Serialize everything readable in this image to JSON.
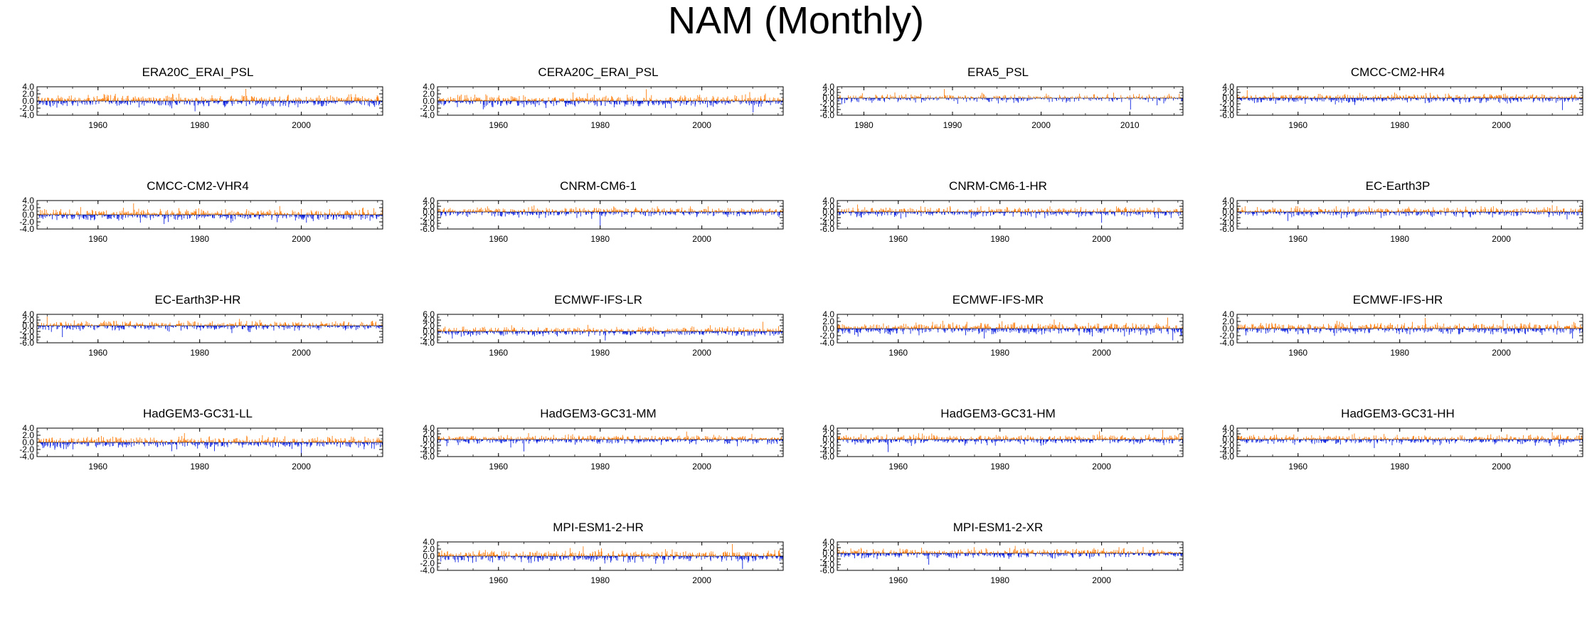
{
  "title": "NAM (Monthly)",
  "colors": {
    "positive": "#ff7f0e",
    "negative": "#0a1fe0",
    "frame": "#000000"
  },
  "chart_data": [
    {
      "type": "bar",
      "title": "ERA20C_ERAI_PSL",
      "xlim": [
        1948,
        2016
      ],
      "ylim": [
        -4,
        4
      ],
      "yticks": [
        -4,
        -2,
        0,
        2,
        4
      ],
      "ytick_labels": [
        "-4.0",
        "-2.0",
        "0.0",
        "2.0",
        "4.0"
      ],
      "xticks": [
        1960,
        1980,
        2000
      ],
      "xtick_labels": [
        "1960",
        "1980",
        "2000"
      ],
      "grid": false,
      "legend": "none",
      "series_summary": {
        "x_start": 1948,
        "x_end": 2016,
        "step": "monthly",
        "max_value": 3.4,
        "min_value": -2.9,
        "max_date": 1989.1,
        "min_date": 1979.1
      }
    },
    {
      "type": "bar",
      "title": "CERA20C_ERAI_PSL",
      "xlim": [
        1948,
        2016
      ],
      "ylim": [
        -4,
        4
      ],
      "yticks": [
        -4,
        -2,
        0,
        2,
        4
      ],
      "ytick_labels": [
        "-4.0",
        "-2.0",
        "0.0",
        "2.0",
        "4.0"
      ],
      "xticks": [
        1960,
        1980,
        2000
      ],
      "xtick_labels": [
        "1960",
        "1980",
        "2000"
      ],
      "grid": false,
      "legend": "none",
      "series_summary": {
        "x_start": 1948,
        "x_end": 2016,
        "step": "monthly",
        "max_value": 3.3,
        "min_value": -3.2,
        "max_date": 1989.1,
        "min_date": 2010.1
      }
    },
    {
      "type": "bar",
      "title": "ERA5_PSL",
      "xlim": [
        1977,
        2016
      ],
      "ylim": [
        -6,
        4
      ],
      "yticks": [
        -6,
        -4,
        -2,
        0,
        2,
        4
      ],
      "ytick_labels": [
        "-6.0",
        "-4.0",
        "-2.0",
        "0.0",
        "2.0",
        "4.0"
      ],
      "xticks": [
        1980,
        1990,
        2000,
        2010
      ],
      "xtick_labels": [
        "1980",
        "1990",
        "2000",
        "2010"
      ],
      "grid": false,
      "legend": "none",
      "series_summary": {
        "x_start": 1977,
        "x_end": 2016,
        "step": "monthly",
        "max_value": 3.2,
        "min_value": -4.0,
        "max_date": 1989.1,
        "min_date": 2010.1
      }
    },
    {
      "type": "bar",
      "title": "CMCC-CM2-HR4",
      "xlim": [
        1948,
        2016
      ],
      "ylim": [
        -6,
        4
      ],
      "yticks": [
        -6,
        -4,
        -2,
        0,
        2,
        4
      ],
      "ytick_labels": [
        "-6.0",
        "-4.0",
        "-2.0",
        "0.0",
        "2.0",
        "4.0"
      ],
      "xticks": [
        1960,
        1980,
        2000
      ],
      "xtick_labels": [
        "1960",
        "1980",
        "2000"
      ],
      "grid": false,
      "legend": "none",
      "series_summary": {
        "x_start": 1948,
        "x_end": 2016,
        "step": "monthly",
        "max_value": 2.8,
        "min_value": -4.2,
        "max_date": 1950,
        "min_date": 2012
      }
    },
    {
      "type": "bar",
      "title": "CMCC-CM2-VHR4",
      "xlim": [
        1948,
        2016
      ],
      "ylim": [
        -4,
        4
      ],
      "yticks": [
        -4,
        -2,
        0,
        2,
        4
      ],
      "ytick_labels": [
        "-4.0",
        "-2.0",
        "0.0",
        "2.0",
        "4.0"
      ],
      "xticks": [
        1960,
        1980,
        2000
      ],
      "xtick_labels": [
        "1960",
        "1980",
        "2000"
      ],
      "grid": false,
      "legend": "none",
      "series_summary": {
        "x_start": 1948,
        "x_end": 2016,
        "step": "monthly",
        "max_value": 3.2,
        "min_value": -2.6,
        "max_date": 1967,
        "min_date": 1973
      }
    },
    {
      "type": "bar",
      "title": "CNRM-CM6-1",
      "xlim": [
        1948,
        2016
      ],
      "ylim": [
        -6,
        4
      ],
      "yticks": [
        -6,
        -4,
        -2,
        0,
        2,
        4
      ],
      "ytick_labels": [
        "-6.0",
        "-4.0",
        "-2.0",
        "0.0",
        "2.0",
        "4.0"
      ],
      "xticks": [
        1960,
        1980,
        2000
      ],
      "xtick_labels": [
        "1960",
        "1980",
        "2000"
      ],
      "grid": false,
      "legend": "none",
      "series_summary": {
        "x_start": 1948,
        "x_end": 2016,
        "step": "monthly",
        "max_value": 2.3,
        "min_value": -5.2,
        "max_date": 1967,
        "min_date": 1980
      }
    },
    {
      "type": "bar",
      "title": "CNRM-CM6-1-HR",
      "xlim": [
        1948,
        2016
      ],
      "ylim": [
        -6,
        4
      ],
      "yticks": [
        -6,
        -4,
        -2,
        0,
        2,
        4
      ],
      "ytick_labels": [
        "-6.0",
        "-4.0",
        "-2.0",
        "0.0",
        "2.0",
        "4.0"
      ],
      "xticks": [
        1960,
        1980,
        2000
      ],
      "xtick_labels": [
        "1960",
        "1980",
        "2000"
      ],
      "grid": false,
      "legend": "none",
      "series_summary": {
        "x_start": 1948,
        "x_end": 2016,
        "step": "monthly",
        "max_value": 2.6,
        "min_value": -3.8,
        "max_date": 1952,
        "min_date": 2000
      }
    },
    {
      "type": "bar",
      "title": "EC-Earth3P",
      "xlim": [
        1948,
        2016
      ],
      "ylim": [
        -6,
        4
      ],
      "yticks": [
        -6,
        -4,
        -2,
        0,
        2,
        4
      ],
      "ytick_labels": [
        "-6.0",
        "-4.0",
        "-2.0",
        "0.0",
        "2.0",
        "4.0"
      ],
      "xticks": [
        1960,
        1980,
        2000
      ],
      "xtick_labels": [
        "1960",
        "1980",
        "2000"
      ],
      "grid": false,
      "legend": "none",
      "series_summary": {
        "x_start": 1948,
        "x_end": 2016,
        "step": "monthly",
        "max_value": 2.4,
        "min_value": -3.2,
        "max_date": 2010,
        "min_date": 1958
      }
    },
    {
      "type": "bar",
      "title": "EC-Earth3P-HR",
      "xlim": [
        1948,
        2016
      ],
      "ylim": [
        -6,
        4
      ],
      "yticks": [
        -6,
        -4,
        -2,
        0,
        2,
        4
      ],
      "ytick_labels": [
        "-6.0",
        "-4.0",
        "-2.0",
        "0.0",
        "2.0",
        "4.0"
      ],
      "xticks": [
        1960,
        1980,
        2000
      ],
      "xtick_labels": [
        "1960",
        "1980",
        "2000"
      ],
      "grid": false,
      "legend": "none",
      "series_summary": {
        "x_start": 1948,
        "x_end": 2016,
        "step": "monthly",
        "max_value": 3.2,
        "min_value": -4.0,
        "max_date": 1950,
        "min_date": 1953
      }
    },
    {
      "type": "bar",
      "title": "ECMWF-IFS-LR",
      "xlim": [
        1948,
        2016
      ],
      "ylim": [
        -4,
        6
      ],
      "yticks": [
        -4,
        -2,
        0,
        2,
        4,
        6
      ],
      "ytick_labels": [
        "-4.0",
        "-2.0",
        "0.0",
        "2.0",
        "4.0",
        "6.0"
      ],
      "xticks": [
        1960,
        1980,
        2000
      ],
      "xtick_labels": [
        "1960",
        "1980",
        "2000"
      ],
      "grid": false,
      "legend": "none",
      "series_summary": {
        "x_start": 1948,
        "x_end": 2016,
        "step": "monthly",
        "max_value": 3.4,
        "min_value": -3.2,
        "max_date": 2012,
        "min_date": 1981
      }
    },
    {
      "type": "bar",
      "title": "ECMWF-IFS-MR",
      "xlim": [
        1948,
        2016
      ],
      "ylim": [
        -4,
        4
      ],
      "yticks": [
        -4,
        -2,
        0,
        2,
        4
      ],
      "ytick_labels": [
        "-4.0",
        "-2.0",
        "0.0",
        "2.0",
        "4.0"
      ],
      "xticks": [
        1960,
        1980,
        2000
      ],
      "xtick_labels": [
        "1960",
        "1980",
        "2000"
      ],
      "grid": false,
      "legend": "none",
      "series_summary": {
        "x_start": 1948,
        "x_end": 2016,
        "step": "monthly",
        "max_value": 3.1,
        "min_value": -3.3,
        "max_date": 2013,
        "min_date": 2014
      }
    },
    {
      "type": "bar",
      "title": "ECMWF-IFS-HR",
      "xlim": [
        1948,
        2016
      ],
      "ylim": [
        -4,
        4
      ],
      "yticks": [
        -4,
        -2,
        0,
        2,
        4
      ],
      "ytick_labels": [
        "-4.0",
        "-2.0",
        "0.0",
        "2.0",
        "4.0"
      ],
      "xticks": [
        1960,
        1980,
        2000
      ],
      "xtick_labels": [
        "1960",
        "1980",
        "2000"
      ],
      "grid": false,
      "legend": "none",
      "series_summary": {
        "x_start": 1948,
        "x_end": 2016,
        "step": "monthly",
        "max_value": 3.0,
        "min_value": -2.8,
        "max_date": 1985,
        "min_date": 2014
      }
    },
    {
      "type": "bar",
      "title": "HadGEM3-GC31-LL",
      "xlim": [
        1948,
        2016
      ],
      "ylim": [
        -4,
        4
      ],
      "yticks": [
        -4,
        -2,
        0,
        2,
        4
      ],
      "ytick_labels": [
        "-4.0",
        "-2.0",
        "0.0",
        "2.0",
        "4.0"
      ],
      "xticks": [
        1960,
        1980,
        2000
      ],
      "xtick_labels": [
        "1960",
        "1980",
        "2000"
      ],
      "grid": false,
      "legend": "none",
      "series_summary": {
        "x_start": 1948,
        "x_end": 2016,
        "step": "monthly",
        "max_value": 2.6,
        "min_value": -3.6,
        "max_date": 1977,
        "min_date": 2000
      }
    },
    {
      "type": "bar",
      "title": "HadGEM3-GC31-MM",
      "xlim": [
        1948,
        2016
      ],
      "ylim": [
        -6,
        4
      ],
      "yticks": [
        -6,
        -4,
        -2,
        0,
        2,
        4
      ],
      "ytick_labels": [
        "-6.0",
        "-4.0",
        "-2.0",
        "0.0",
        "2.0",
        "4.0"
      ],
      "xticks": [
        1960,
        1980,
        2000
      ],
      "xtick_labels": [
        "1960",
        "1980",
        "2000"
      ],
      "grid": false,
      "legend": "none",
      "series_summary": {
        "x_start": 1948,
        "x_end": 2016,
        "step": "monthly",
        "max_value": 2.8,
        "min_value": -4.2,
        "max_date": 1997,
        "min_date": 1965
      }
    },
    {
      "type": "bar",
      "title": "HadGEM3-GC31-HM",
      "xlim": [
        1948,
        2016
      ],
      "ylim": [
        -6,
        4
      ],
      "yticks": [
        -6,
        -4,
        -2,
        0,
        2,
        4
      ],
      "ytick_labels": [
        "-6.0",
        "-4.0",
        "-2.0",
        "0.0",
        "2.0",
        "4.0"
      ],
      "xticks": [
        1960,
        1980,
        2000
      ],
      "xtick_labels": [
        "1960",
        "1980",
        "2000"
      ],
      "grid": false,
      "legend": "none",
      "series_summary": {
        "x_start": 1948,
        "x_end": 2016,
        "step": "monthly",
        "max_value": 3.4,
        "min_value": -4.4,
        "max_date": 2012,
        "min_date": 1958
      }
    },
    {
      "type": "bar",
      "title": "HadGEM3-GC31-HH",
      "xlim": [
        1948,
        2016
      ],
      "ylim": [
        -6,
        4
      ],
      "yticks": [
        -6,
        -4,
        -2,
        0,
        2,
        4
      ],
      "ytick_labels": [
        "-6.0",
        "-4.0",
        "-2.0",
        "0.0",
        "2.0",
        "4.0"
      ],
      "xticks": [
        1960,
        1980,
        2000
      ],
      "xtick_labels": [
        "1960",
        "1980",
        "2000"
      ],
      "grid": false,
      "legend": "none",
      "series_summary": {
        "x_start": 1948,
        "x_end": 2016,
        "step": "monthly",
        "max_value": 2.6,
        "min_value": -3.0,
        "max_date": 2010,
        "min_date": 1975
      }
    },
    {
      "type": "bar",
      "title": "MPI-ESM1-2-HR",
      "xlim": [
        1948,
        2016
      ],
      "ylim": [
        -4,
        4
      ],
      "yticks": [
        -4,
        -2,
        0,
        2,
        4
      ],
      "ytick_labels": [
        "-4.0",
        "-2.0",
        "0.0",
        "2.0",
        "4.0"
      ],
      "xticks": [
        1960,
        1980,
        2000
      ],
      "xtick_labels": [
        "1960",
        "1980",
        "2000"
      ],
      "grid": false,
      "legend": "none",
      "series_summary": {
        "x_start": 1948,
        "x_end": 2016,
        "step": "monthly",
        "max_value": 3.4,
        "min_value": -3.6,
        "max_date": 2006,
        "min_date": 2008
      }
    },
    {
      "type": "bar",
      "title": "MPI-ESM1-2-XR",
      "xlim": [
        1948,
        2016
      ],
      "ylim": [
        -6,
        4
      ],
      "yticks": [
        -6,
        -4,
        -2,
        0,
        2,
        4
      ],
      "ytick_labels": [
        "-6.0",
        "-4.0",
        "-2.0",
        "0.0",
        "2.0",
        "4.0"
      ],
      "xticks": [
        1960,
        1980,
        2000
      ],
      "xtick_labels": [
        "1960",
        "1980",
        "2000"
      ],
      "grid": false,
      "legend": "none",
      "series_summary": {
        "x_start": 1948,
        "x_end": 2016,
        "step": "monthly",
        "max_value": 2.6,
        "min_value": -4.0,
        "max_date": 1983,
        "min_date": 1966
      }
    }
  ]
}
